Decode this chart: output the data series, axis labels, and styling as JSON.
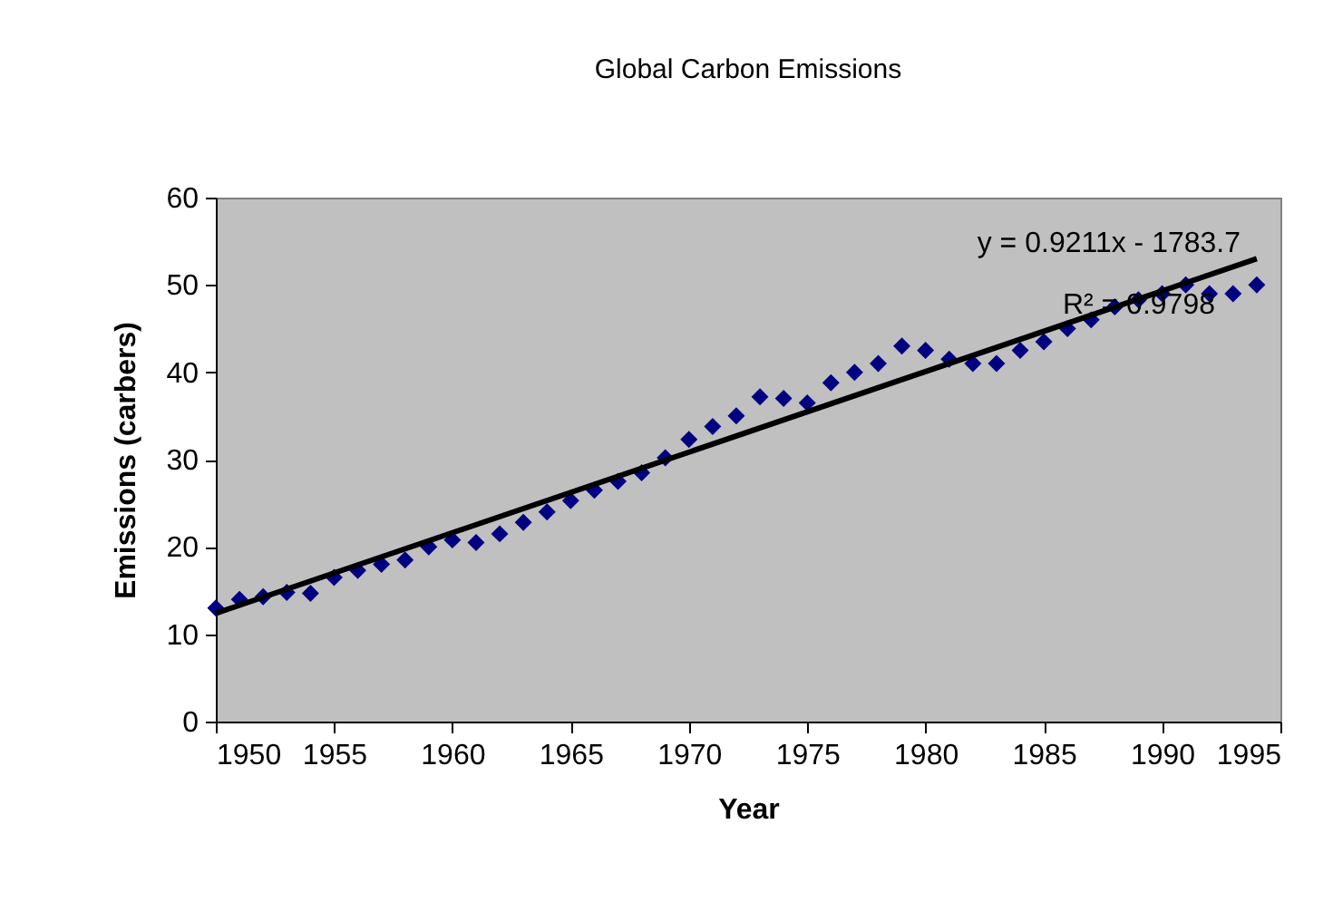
{
  "chart_data": {
    "type": "scatter",
    "title": "Global Carbon Emissions",
    "xlabel": "Year",
    "ylabel": "Emissions (carbers)",
    "annotations": [
      "y = 0.9211x - 1783.7",
      "R² = 0.9798"
    ],
    "xlim": [
      1950,
      1995
    ],
    "xticks": [
      1950,
      1955,
      1960,
      1965,
      1970,
      1975,
      1980,
      1985,
      1990,
      1995
    ],
    "ylim": [
      0,
      60
    ],
    "yticks": [
      0,
      10,
      20,
      30,
      40,
      50,
      60
    ],
    "grid": false,
    "marker": "diamond",
    "x": [
      1950,
      1951,
      1952,
      1953,
      1954,
      1955,
      1956,
      1957,
      1958,
      1959,
      1960,
      1961,
      1962,
      1963,
      1964,
      1965,
      1966,
      1967,
      1968,
      1969,
      1970,
      1971,
      1972,
      1973,
      1974,
      1975,
      1976,
      1977,
      1978,
      1979,
      1980,
      1981,
      1982,
      1983,
      1984,
      1985,
      1986,
      1987,
      1988,
      1989,
      1990,
      1991,
      1992,
      1993,
      1994
    ],
    "series": [
      {
        "color": "#000080",
        "values": [
          13,
          14,
          14.3,
          14.8,
          14.7,
          16.5,
          17.3,
          18,
          18.5,
          20,
          20.8,
          20.5,
          21.5,
          22.8,
          24,
          25.3,
          26.5,
          27.5,
          28.5,
          30.2,
          32.3,
          33.8,
          35,
          37.2,
          37,
          36.5,
          38.8,
          40,
          41,
          43,
          42.5,
          41.5,
          41,
          41,
          42.5,
          43.5,
          45,
          46,
          47.5,
          48.3,
          49,
          50,
          49,
          49,
          50
        ]
      },
      {
        "type": "line",
        "color": "#000000",
        "marker": "none",
        "line_style": "solid",
        "x": [
          1950,
          1994
        ],
        "values": [
          12.4,
          53.0
        ]
      }
    ]
  }
}
